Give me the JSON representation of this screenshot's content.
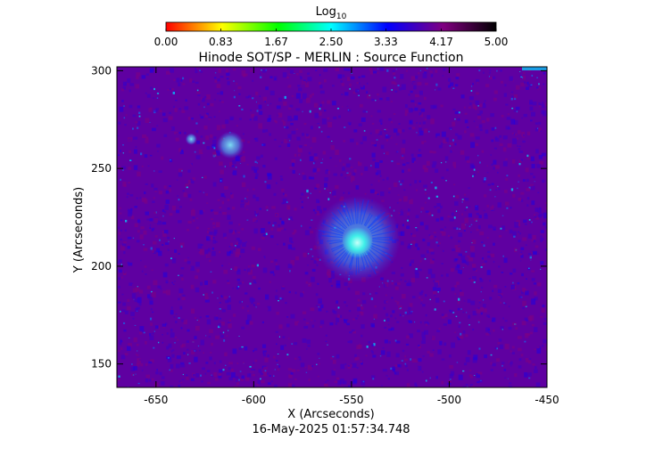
{
  "chart_data": {
    "type": "heatmap",
    "title": "Hinode SOT/SP - MERLIN : Source Function",
    "xlabel": "X (Arcseconds)",
    "ylabel": "Y (Arcseconds)",
    "timestamp": "16-May-2025 01:57:34.748",
    "xlim": [
      -670,
      -450
    ],
    "ylim": [
      138,
      302
    ],
    "x_ticks": [
      -650,
      -600,
      -550,
      -500,
      -450
    ],
    "x_tick_labels": [
      "-650",
      "-600",
      "-550",
      "-500",
      "-450"
    ],
    "y_ticks": [
      150,
      200,
      250,
      300
    ],
    "y_tick_labels": [
      "150",
      "200",
      "250",
      "300"
    ],
    "colorbar": {
      "title_base": "Log",
      "title_sub": "10",
      "range": [
        0.0,
        5.0
      ],
      "tick_values": [
        0.0,
        0.83,
        1.67,
        2.5,
        3.33,
        4.17,
        5.0
      ],
      "tick_labels": [
        "0.00",
        "0.83",
        "1.67",
        "2.50",
        "3.33",
        "4.17",
        "5.00"
      ],
      "colormap": [
        "#ff0000",
        "#ffff00",
        "#00ff00",
        "#00ffff",
        "#0000ff",
        "#800080",
        "#000000"
      ]
    },
    "background_level": 3.95,
    "features": [
      {
        "kind": "sunspot-umbra",
        "x": -547,
        "y": 212,
        "radius": 8,
        "level": 3.1
      },
      {
        "kind": "sunspot-penumbra",
        "x": -547,
        "y": 214,
        "radius": 22,
        "level": 3.55
      },
      {
        "kind": "pore",
        "x": -612,
        "y": 262,
        "radius": 7,
        "level": 3.5
      },
      {
        "kind": "pore",
        "x": -632,
        "y": 265,
        "radius": 3,
        "level": 3.6
      }
    ]
  }
}
